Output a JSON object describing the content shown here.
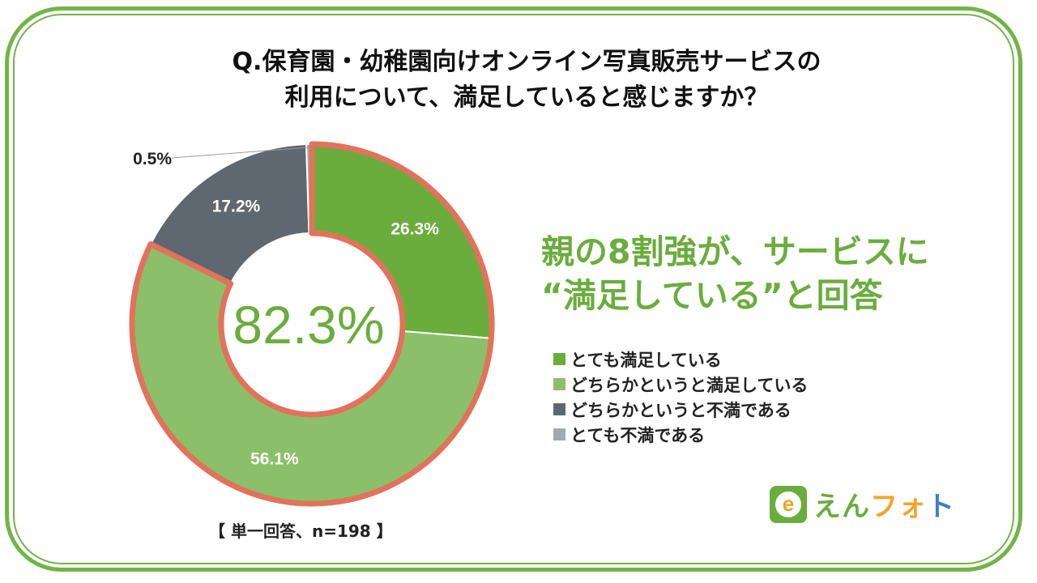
{
  "title": {
    "line1": "Q.保育園・幼稚園向けオンライン写真販売サービスの",
    "line2": "利用について、満足していると感じますか？"
  },
  "headline": {
    "line1": "親の8割強が、サービスに",
    "line2": "“満足している”と回答"
  },
  "center_value": "82.3%",
  "note": "【 単一回答、n=198 】",
  "logo": {
    "text_parts": [
      "えん",
      "フォ",
      "ト"
    ],
    "text_colors": [
      "#6aad3d",
      "#f2a32a",
      "#3a7fc1"
    ],
    "icon_letter": "e"
  },
  "colors": {
    "frame": "#72b447",
    "highlight_outline": "#e2725b",
    "headline": "#6aad3d"
  },
  "chart_data": {
    "type": "pie",
    "subtype": "donut",
    "series": [
      {
        "name": "とても満足している",
        "value": 26.3,
        "label": "26.3%",
        "color": "#6aad3d"
      },
      {
        "name": "どちらかというと満足している",
        "value": 56.1,
        "label": "56.1%",
        "color": "#8cbf69"
      },
      {
        "name": "どちらかというと不満である",
        "value": 17.2,
        "label": "17.2%",
        "color": "#5f6770"
      },
      {
        "name": "とても不満である",
        "value": 0.5,
        "label": "0.5%",
        "color": "#a3a8ad"
      }
    ],
    "highlighted_series": [
      "とても満足している",
      "どちらかというと満足している"
    ],
    "start_angle_deg": 0,
    "direction": "clockwise",
    "legend_position": "right"
  }
}
